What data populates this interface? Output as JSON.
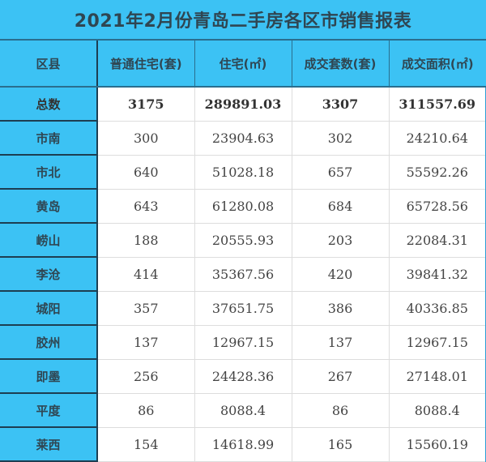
{
  "title": "2021年2月份青岛二手房各区市销售报表",
  "headers": [
    "区县",
    "普通住宅(套)",
    "住宅(㎡)",
    "成交套数(套)",
    "成交面积(㎡)"
  ],
  "rows": [
    [
      "总数",
      "3175",
      "289891.03",
      "3307",
      "311557.69"
    ],
    [
      "市南",
      "300",
      "23904.63",
      "302",
      "24210.64"
    ],
    [
      "市北",
      "640",
      "51028.18",
      "657",
      "55592.26"
    ],
    [
      "黄岛",
      "643",
      "61280.08",
      "684",
      "65728.56"
    ],
    [
      "崂山",
      "188",
      "20555.93",
      "203",
      "22084.31"
    ],
    [
      "李沧",
      "414",
      "35367.56",
      "420",
      "39841.32"
    ],
    [
      "城阳",
      "357",
      "37651.75",
      "386",
      "40336.85"
    ],
    [
      "胶州",
      "137",
      "12967.15",
      "137",
      "12967.15"
    ],
    [
      "即墨",
      "256",
      "24428.36",
      "267",
      "27148.01"
    ],
    [
      "平度",
      "86",
      "8088.4",
      "86",
      "8088.4"
    ],
    [
      "莱西",
      "154",
      "14618.99",
      "165",
      "15560.19"
    ]
  ],
  "colors": {
    "header_bg": "#3cc2f4",
    "header_text": "#2f4652"
  }
}
